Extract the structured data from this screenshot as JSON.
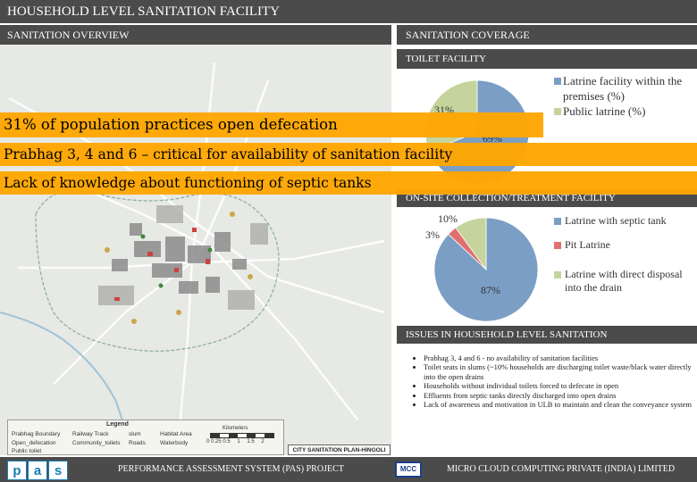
{
  "title": "HOUSEHOLD LEVEL SANITATION FACILITY",
  "sections": {
    "overview": "SANITATION OVERVIEW",
    "coverage": "SANITATION COVERAGE",
    "toilet_facility": "TOILET FACILITY",
    "onsite": "ON-SITE COLLECTION/TREATMENT FACILITY",
    "issues": "ISSUES IN HOUSEHOLD LEVEL SANITATION"
  },
  "banners": [
    "31% of population practices open defecation",
    "Prabhag 3, 4 and 6 – critical for availability of sanitation facility",
    "Lack of knowledge about functioning of septic tanks"
  ],
  "colors": {
    "header": "#4b4b4b",
    "banner": "#ffa500",
    "blue": "#7b9ec4",
    "green": "#c5d49d",
    "red": "#e07070"
  },
  "toilet_chart": {
    "type": "pie",
    "labels": [
      "31%",
      "69%"
    ],
    "legend": [
      "Latrine facility within the premises (%)",
      "Public latrine (%)"
    ]
  },
  "onsite_chart": {
    "type": "pie",
    "labels": [
      "10%",
      "3%",
      "87%"
    ],
    "legend": [
      "Latrine with septic tank",
      "Pit Latrine",
      "Latrine with direct disposal into the drain"
    ]
  },
  "chart_data": [
    {
      "type": "pie",
      "title": "TOILET FACILITY",
      "categories": [
        "Latrine facility within the premises (%)",
        "Public latrine (%)"
      ],
      "values": [
        69,
        31
      ],
      "legend_position": "right"
    },
    {
      "type": "pie",
      "title": "ON-SITE COLLECTION/TREATMENT FACILITY",
      "categories": [
        "Latrine with septic tank",
        "Pit Latrine",
        "Latrine with direct disposal into the drain"
      ],
      "values": [
        87,
        3,
        10
      ],
      "legend_position": "right"
    }
  ],
  "issues": [
    "Prabhag 3, 4 and 6 - no availability of sanitation facilities",
    "Toilet seats in slums (~10% households are discharging toilet waste/black water directly into the open drains",
    "Households without individual toilets forced to defecate in open",
    "Effluents from septic tanks directly discharged into open drains",
    "Lack of awareness and motivation in ULB to maintain and clean the conveyance system"
  ],
  "map_legend": {
    "title": "Legend",
    "items": [
      "Prabhag Boundary",
      "Railway Track",
      "slum",
      "Habitat Area",
      "Open_defecation",
      "Community_toilets",
      "Roads",
      "Waterbody",
      "Public toilet"
    ],
    "scale_unit": "Kilometers",
    "scale_ticks": [
      "0 0.25 0.5",
      "1",
      "1.5",
      "2"
    ],
    "plan_title": "CITY SANITATION PLAN-HINGOLI"
  },
  "footer": {
    "logo_letters": [
      "p",
      "a",
      "s"
    ],
    "project": "PERFORMANCE ASSESSMENT SYSTEM (PAS) PROJECT",
    "mcc_logo": "MCC",
    "company": "MICRO CLOUD COMPUTING PRIVATE (INDIA) LIMITED"
  }
}
